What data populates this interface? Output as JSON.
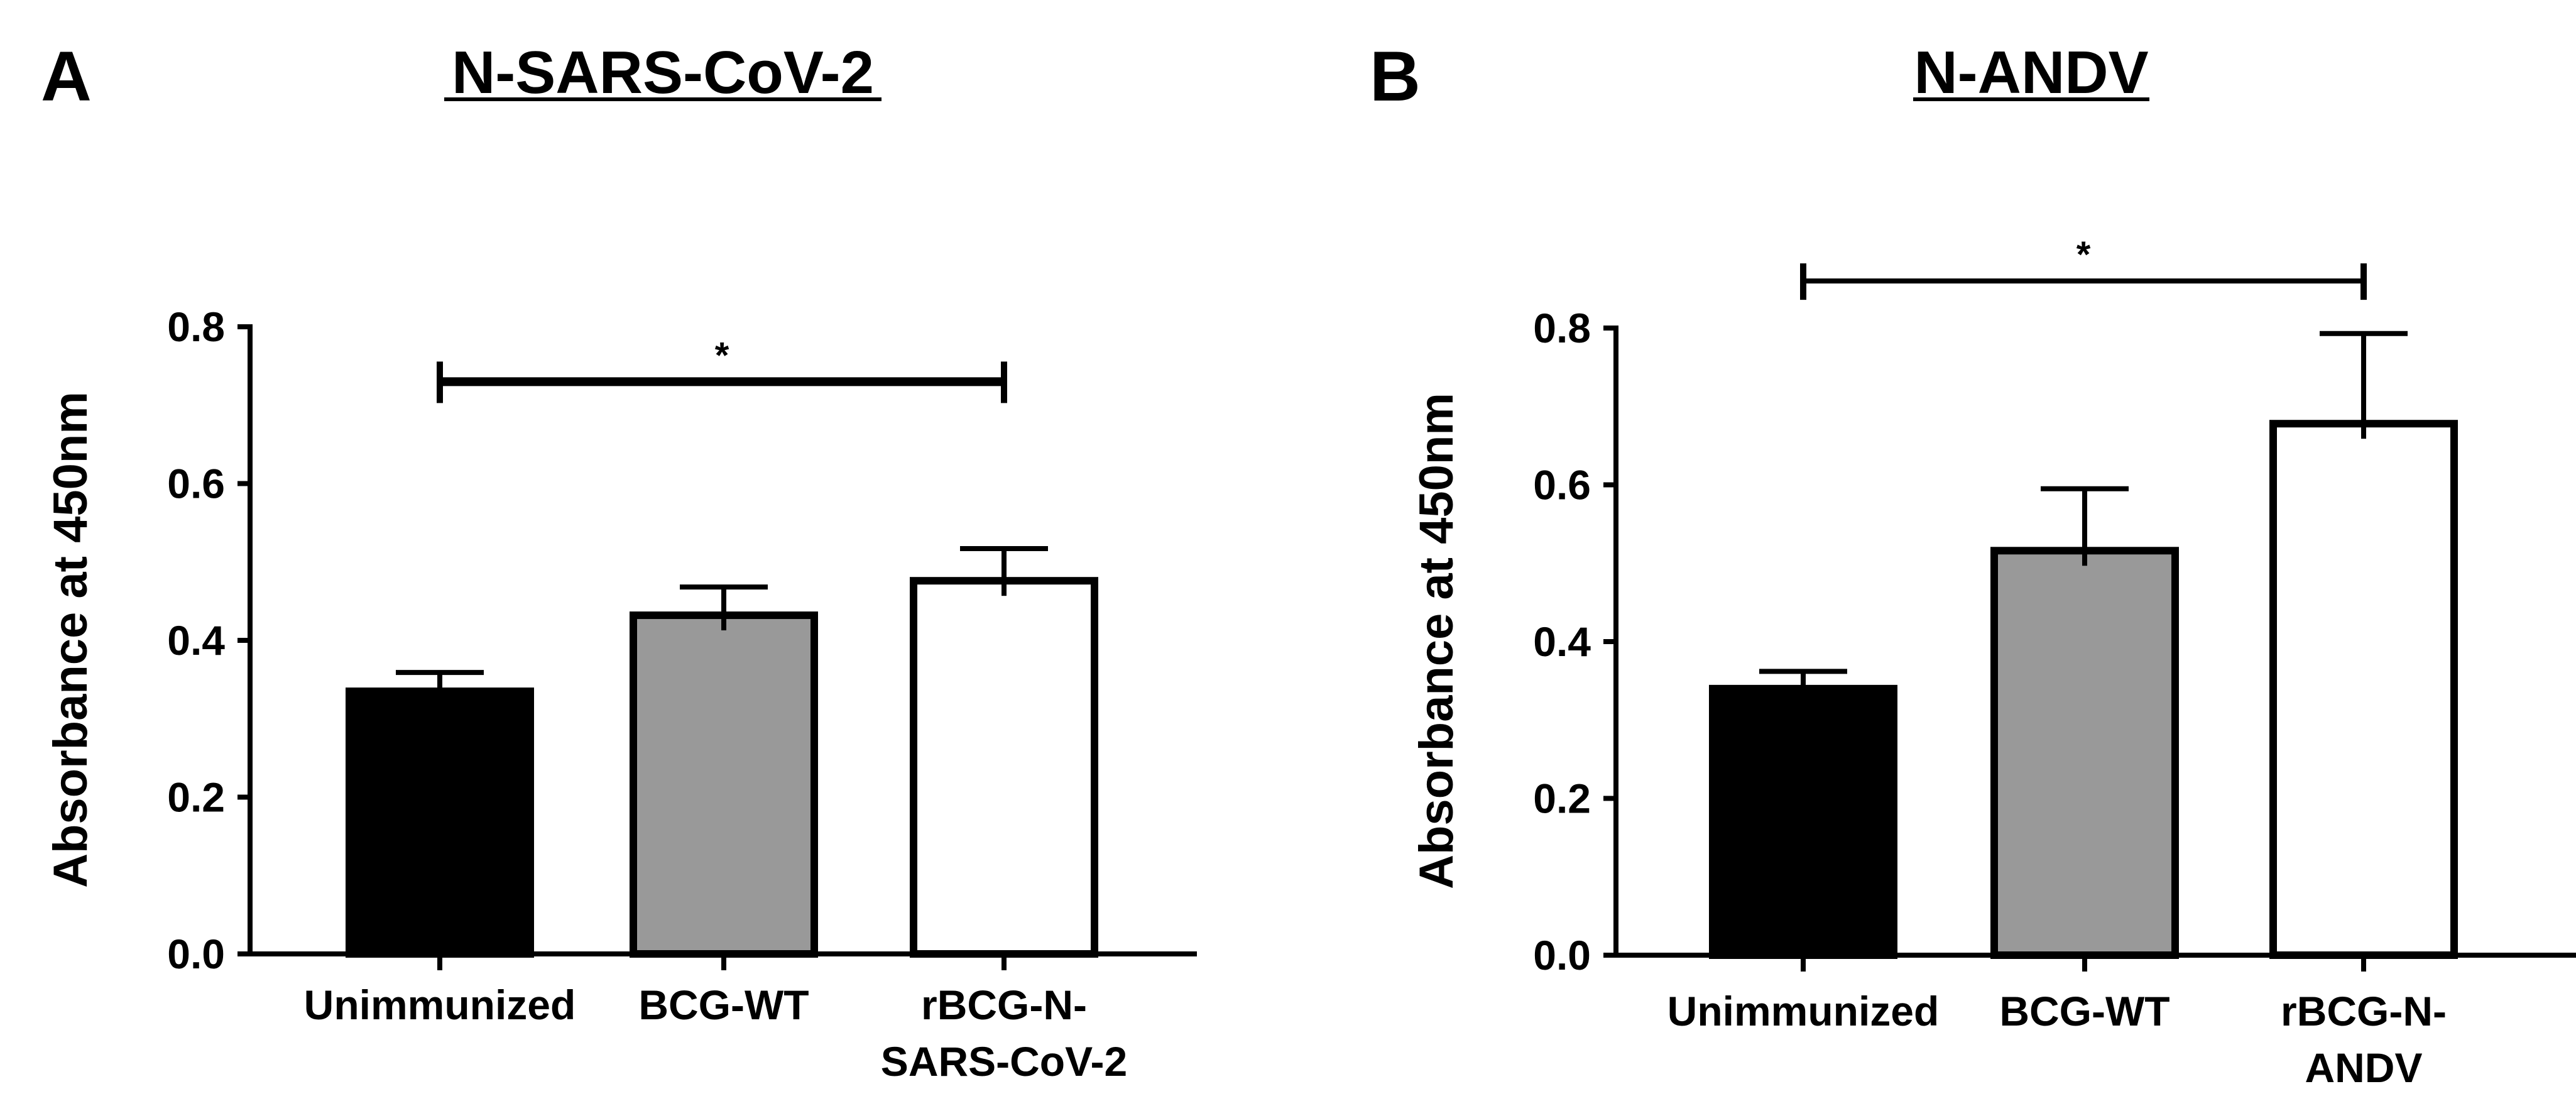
{
  "chart_data": [
    {
      "type": "bar",
      "panel": "A",
      "title": "N-SARS-CoV-2",
      "ylabel": "Absorbance at 450nm",
      "xlabel": "",
      "ylim": [
        0,
        0.8
      ],
      "yticks": [
        "0.0",
        "0.2",
        "0.4",
        "0.6",
        "0.8"
      ],
      "categories": [
        {
          "line1": "Unimmunized",
          "line2": ""
        },
        {
          "line1": "BCG-WT",
          "line2": ""
        },
        {
          "line1": "rBCG-N-",
          "line2": "SARS-CoV-2"
        }
      ],
      "values": [
        0.335,
        0.432,
        0.476
      ],
      "errors": [
        0.024,
        0.036,
        0.041
      ],
      "colors": [
        "#000000",
        "#999999",
        "#ffffff"
      ],
      "significance": {
        "from": 0,
        "to": 2,
        "label": "*",
        "y": 0.73
      }
    },
    {
      "type": "bar",
      "panel": "B",
      "title": "N-ANDV",
      "ylabel": "Absorbance at 450nm",
      "xlabel": "",
      "ylim": [
        0,
        0.8
      ],
      "yticks": [
        "0.0",
        "0.2",
        "0.4",
        "0.6",
        "0.8"
      ],
      "categories": [
        {
          "line1": "Unimmunized",
          "line2": ""
        },
        {
          "line1": "BCG-WT",
          "line2": ""
        },
        {
          "line1": "rBCG-N-",
          "line2": "ANDV"
        }
      ],
      "values": [
        0.34,
        0.516,
        0.678
      ],
      "errors": [
        0.022,
        0.079,
        0.115
      ],
      "colors": [
        "#000000",
        "#999999",
        "#ffffff"
      ],
      "significance": {
        "from": 0,
        "to": 2,
        "label": "*",
        "y": 0.86
      }
    }
  ]
}
